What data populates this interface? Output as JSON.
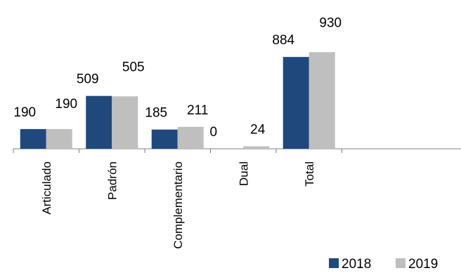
{
  "chart_data": {
    "type": "bar",
    "categories": [
      "Articulado",
      "Padrón",
      "Complementario",
      "Dual",
      "Total"
    ],
    "series": [
      {
        "name": "2018",
        "values": [
          190,
          509,
          185,
          0,
          884
        ],
        "color": "#1f497d"
      },
      {
        "name": "2019",
        "values": [
          190,
          505,
          211,
          24,
          930
        ],
        "color": "#bfbfbf"
      }
    ],
    "ylim": [
      0,
      1000
    ],
    "grid": false,
    "legend_position": "bottom-right",
    "data_labels": true
  }
}
